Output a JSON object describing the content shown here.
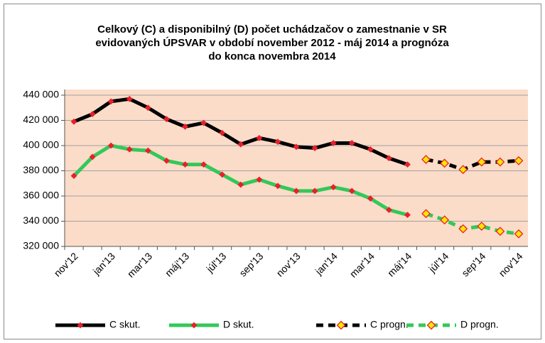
{
  "chart_data": {
    "type": "line",
    "title": [
      "Celkový (C) a disponibilný (D) počet uchádzačov o zamestnanie v SR",
      "evidovaných ÚPSVAR v období november 2012 - máj 2014 a prognóza",
      "do konca novembra 2014"
    ],
    "categories": [
      "nov'12",
      null,
      "jan'13",
      null,
      "mar'13",
      null,
      "máj'13",
      null,
      "júl'13",
      null,
      "sep'13",
      null,
      "nov'13",
      null,
      "jan'14",
      null,
      "mar'14",
      null,
      "máj'14",
      null,
      "júl'14",
      null,
      "sep'14",
      null,
      "nov'14"
    ],
    "series": [
      {
        "name": "C skut.",
        "color": "#000000",
        "style": "solid",
        "marker_fill": "#e8202a",
        "marker_edge": "#e8202a",
        "values": [
          419000,
          425000,
          435000,
          437000,
          430000,
          421000,
          415000,
          418000,
          410000,
          401000,
          406000,
          403000,
          399000,
          398000,
          402000,
          402000,
          397000,
          390000,
          385000,
          null,
          null,
          null,
          null,
          null,
          null
        ]
      },
      {
        "name": "D skut.",
        "color": "#33c85a",
        "style": "solid",
        "marker_fill": "#e8202a",
        "marker_edge": "#e8202a",
        "values": [
          376000,
          391000,
          400000,
          397000,
          396000,
          388000,
          385000,
          385000,
          377000,
          369000,
          373000,
          368000,
          364000,
          364000,
          367000,
          364000,
          358000,
          349000,
          345000,
          null,
          null,
          null,
          null,
          null,
          null
        ]
      },
      {
        "name": "C progn.",
        "color": "#000000",
        "style": "dashed",
        "marker_fill": "#ffe600",
        "marker_edge": "#e8202a",
        "values": [
          null,
          null,
          null,
          null,
          null,
          null,
          null,
          null,
          null,
          null,
          null,
          null,
          null,
          null,
          null,
          null,
          null,
          null,
          null,
          389000,
          386000,
          381000,
          387000,
          387000,
          388000
        ]
      },
      {
        "name": "D progn.",
        "color": "#33c85a",
        "style": "dashed",
        "marker_fill": "#ffe600",
        "marker_edge": "#e8202a",
        "values": [
          null,
          null,
          null,
          null,
          null,
          null,
          null,
          null,
          null,
          null,
          null,
          null,
          null,
          null,
          null,
          null,
          null,
          null,
          null,
          346000,
          341000,
          334000,
          336000,
          332000,
          330000
        ]
      }
    ],
    "ylim": [
      320000,
      440000
    ],
    "yticks": [
      {
        "value": 320000,
        "label": "320 000"
      },
      {
        "value": 340000,
        "label": "340 000"
      },
      {
        "value": 360000,
        "label": "360 000"
      },
      {
        "value": 380000,
        "label": "380 000"
      },
      {
        "value": 400000,
        "label": "400 000"
      },
      {
        "value": 420000,
        "label": "420 000"
      },
      {
        "value": 440000,
        "label": "440 000"
      }
    ],
    "grid": true,
    "plot_background": "#fbdcc8",
    "legend": "bottom"
  }
}
